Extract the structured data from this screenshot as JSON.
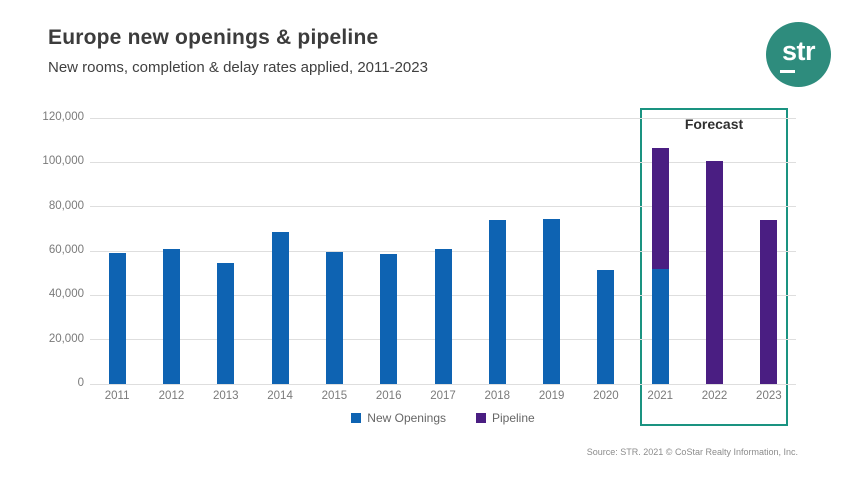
{
  "header": {
    "title": "Europe new openings & pipeline",
    "subtitle": "New rooms, completion & delay rates applied, 2011-2023"
  },
  "logo": {
    "text": "str",
    "bg_color": "#2e8c7d"
  },
  "colors": {
    "new_openings": "#0e63b2",
    "pipeline": "#4a1e82",
    "forecast_border": "#1a9381",
    "gridline": "#dedede",
    "logo_teal": "#2e8c7d"
  },
  "chart_data": {
    "type": "bar",
    "stacked": true,
    "title": "Europe new openings & pipeline",
    "subtitle": "New rooms, completion & delay rates applied, 2011-2023",
    "xlabel": "",
    "ylabel": "",
    "ylim": [
      0,
      120000
    ],
    "yticks": [
      0,
      20000,
      40000,
      60000,
      80000,
      100000,
      120000
    ],
    "grid": true,
    "legend_position": "bottom",
    "categories": [
      "2011",
      "2012",
      "2013",
      "2014",
      "2015",
      "2016",
      "2017",
      "2018",
      "2019",
      "2020",
      "2021",
      "2022",
      "2023"
    ],
    "series": [
      {
        "name": "New Openings",
        "color": "#0e63b2",
        "values": [
          59000,
          61000,
          54500,
          68500,
          59500,
          58500,
          61000,
          74000,
          74500,
          51500,
          52000,
          0,
          0
        ]
      },
      {
        "name": "Pipeline",
        "color": "#4a1e82",
        "values": [
          0,
          0,
          0,
          0,
          0,
          0,
          0,
          0,
          0,
          0,
          54500,
          100500,
          74000
        ]
      }
    ],
    "forecast": {
      "label": "Forecast",
      "years": [
        "2021",
        "2022",
        "2023"
      ]
    }
  },
  "footer": {
    "source": "Source: STR. 2021 © CoStar Realty Information, Inc."
  }
}
